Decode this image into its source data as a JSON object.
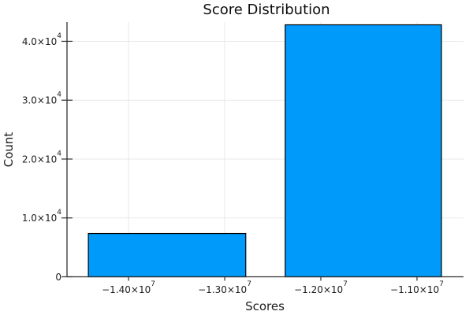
{
  "chart_data": {
    "type": "bar",
    "title": "Score Distribution",
    "xlabel": "Scores",
    "ylabel": "Count",
    "legend": "none",
    "grid": true,
    "xlim": [
      -14640000,
      -10516000
    ],
    "ylim": [
      0,
      43270
    ],
    "bars": [
      {
        "x_from": -14418000,
        "x_to": -12781000,
        "x_center": -13600000,
        "count": 7350
      },
      {
        "x_from": -12371000,
        "x_to": -10746000,
        "x_center": -11558000,
        "count": 42800
      }
    ],
    "x_ticks": [
      {
        "value": -14000000,
        "label": "−1.40×10",
        "sup": "7"
      },
      {
        "value": -13000000,
        "label": "−1.30×10",
        "sup": "7"
      },
      {
        "value": -12000000,
        "label": "−1.20×10",
        "sup": "7"
      },
      {
        "value": -11000000,
        "label": "−1.10×10",
        "sup": "7"
      }
    ],
    "y_ticks": [
      {
        "value": 0,
        "label": "0",
        "sup": ""
      },
      {
        "value": 10000,
        "label": "1.0×10",
        "sup": "4"
      },
      {
        "value": 20000,
        "label": "2.0×10",
        "sup": "4"
      },
      {
        "value": 30000,
        "label": "3.0×10",
        "sup": "4"
      },
      {
        "value": 40000,
        "label": "4.0×10",
        "sup": "4"
      }
    ],
    "colors": {
      "bar_fill": "#009afa",
      "bar_stroke": "#000000",
      "grid": "#e9e9e9",
      "axis": "#2f2f2f",
      "text": "#1c1c1c",
      "background": "#ffffff"
    }
  }
}
